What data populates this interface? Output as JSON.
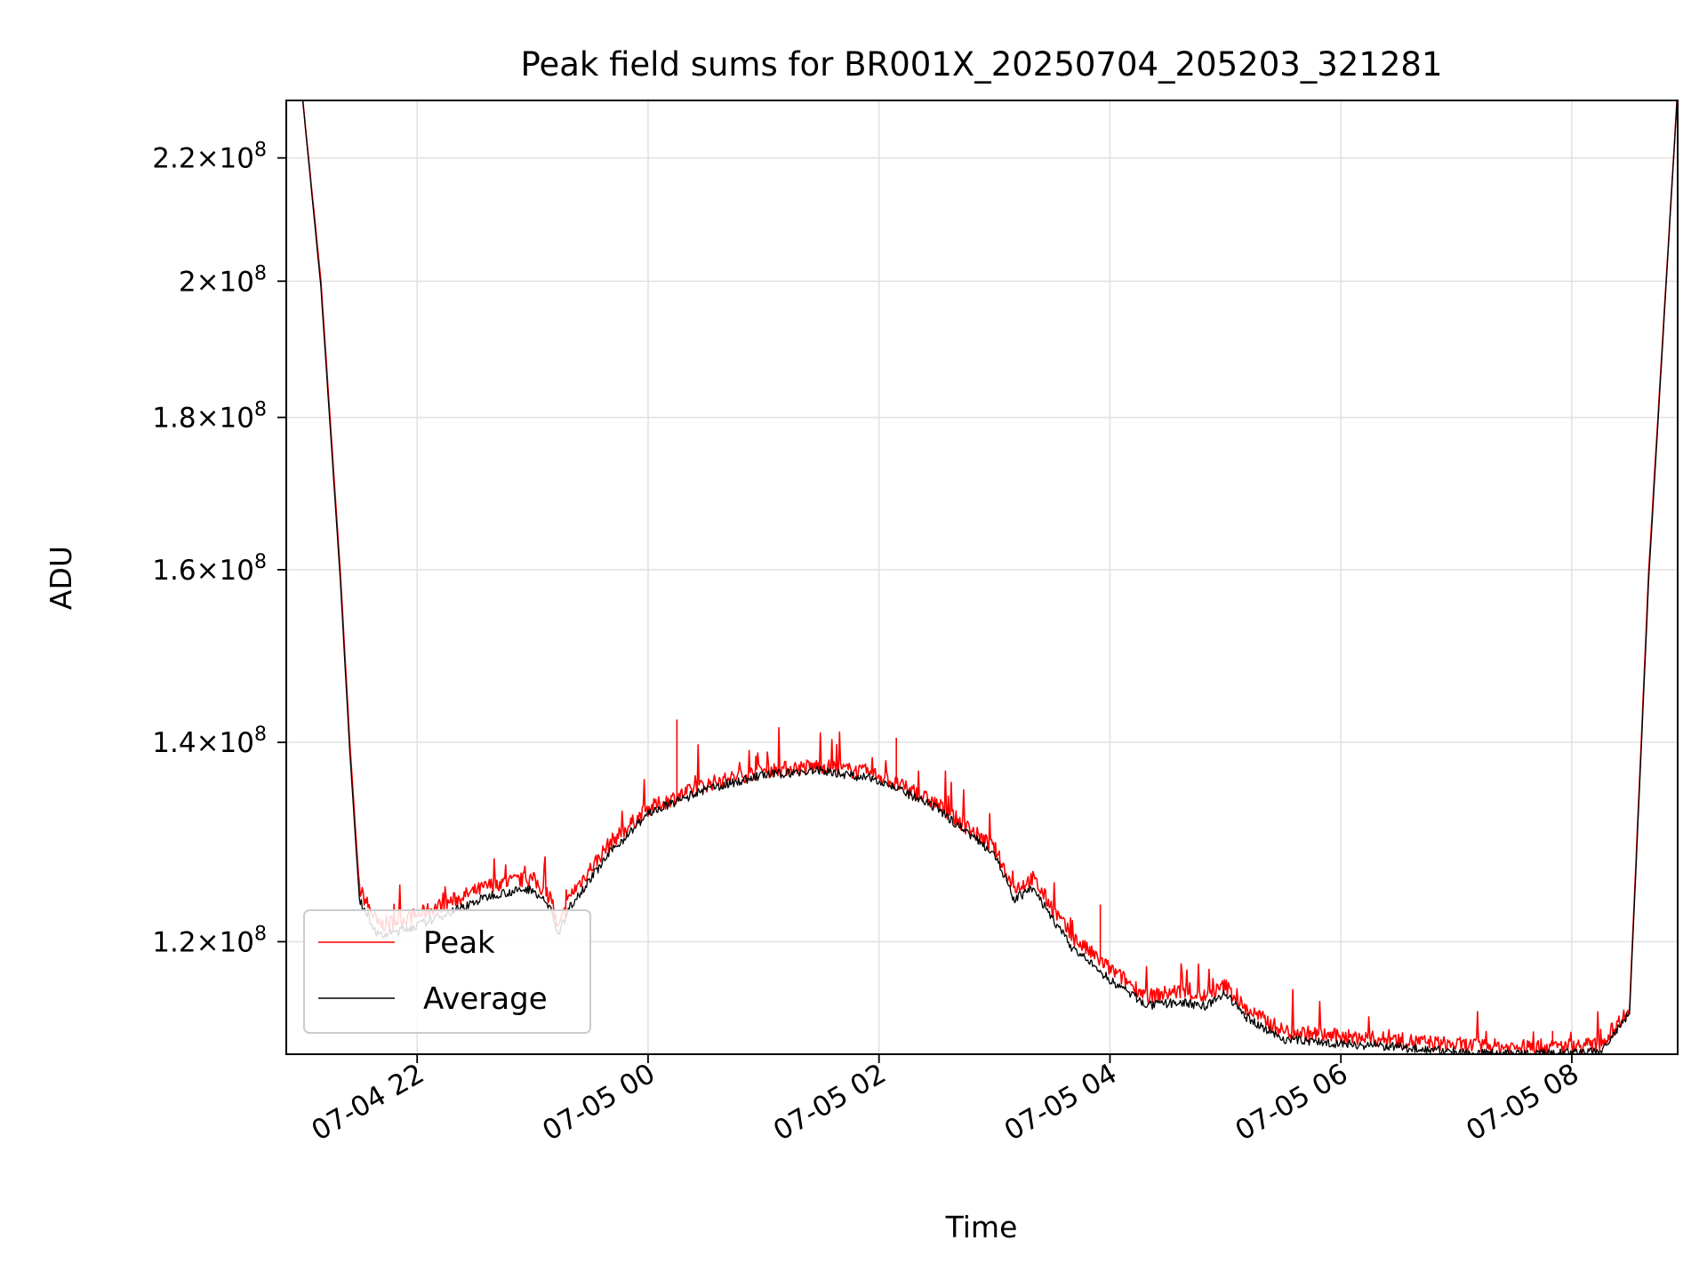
{
  "chart_data": {
    "type": "line",
    "title": "Peak field sums for BR001X_20250704_205203_321281",
    "xlabel": "Time",
    "ylabel": "ADU",
    "y_scale": "log",
    "grid": true,
    "legend_placement": "lower-left",
    "xlim": [
      "2025-07-04 20:52",
      "2025-07-05 08:55"
    ],
    "ylim": [
      110000000,
      230000000
    ],
    "x_ticks": [
      {
        "value": "2025-07-04 22:00",
        "label": "07-04 22"
      },
      {
        "value": "2025-07-05 00:00",
        "label": "07-05 00"
      },
      {
        "value": "2025-07-05 02:00",
        "label": "07-05 02"
      },
      {
        "value": "2025-07-05 04:00",
        "label": "07-05 04"
      },
      {
        "value": "2025-07-05 06:00",
        "label": "07-05 06"
      },
      {
        "value": "2025-07-05 08:00",
        "label": "07-05 08"
      }
    ],
    "y_ticks": [
      {
        "value": 120000000,
        "mantissa": "1.2",
        "exponent": "8"
      },
      {
        "value": 140000000,
        "mantissa": "1.4",
        "exponent": "8"
      },
      {
        "value": 160000000,
        "mantissa": "1.6",
        "exponent": "8"
      },
      {
        "value": 180000000,
        "mantissa": "1.8",
        "exponent": "8"
      },
      {
        "value": 200000000,
        "mantissa": "2",
        "exponent": "8"
      },
      {
        "value": 220000000,
        "mantissa": "2.2",
        "exponent": "8"
      }
    ],
    "x": [
      "2025-07-04 20:52",
      "2025-07-04 21:00",
      "2025-07-04 21:10",
      "2025-07-04 21:20",
      "2025-07-04 21:25",
      "2025-07-04 21:30",
      "2025-07-04 21:40",
      "2025-07-04 22:00",
      "2025-07-04 22:20",
      "2025-07-04 22:40",
      "2025-07-04 23:00",
      "2025-07-04 23:10",
      "2025-07-04 23:13",
      "2025-07-04 23:20",
      "2025-07-04 23:40",
      "2025-07-05 00:00",
      "2025-07-05 00:30",
      "2025-07-05 01:00",
      "2025-07-05 01:30",
      "2025-07-05 02:00",
      "2025-07-05 02:30",
      "2025-07-05 03:00",
      "2025-07-05 03:10",
      "2025-07-05 03:20",
      "2025-07-05 03:40",
      "2025-07-05 04:00",
      "2025-07-05 04:20",
      "2025-07-05 04:35",
      "2025-07-05 04:50",
      "2025-07-05 05:00",
      "2025-07-05 05:10",
      "2025-07-05 05:30",
      "2025-07-05 06:00",
      "2025-07-05 06:30",
      "2025-07-05 07:00",
      "2025-07-05 07:30",
      "2025-07-05 08:00",
      "2025-07-05 08:15",
      "2025-07-05 08:30",
      "2025-07-05 08:40",
      "2025-07-05 08:55"
    ],
    "series": [
      {
        "name": "Peak",
        "color": "#ff0000",
        "values": [
          232000000,
          232000000,
          200000000,
          160000000,
          140000000,
          125000000,
          121500000,
          122500000,
          124000000,
          125500000,
          126000000,
          124000000,
          121000000,
          124500000,
          129500000,
          133000000,
          135500000,
          137000000,
          137500000,
          136500000,
          133500000,
          129000000,
          125000000,
          126000000,
          120500000,
          117500000,
          115000000,
          115500000,
          115000000,
          116000000,
          114000000,
          112000000,
          111500000,
          111200000,
          110800000,
          110600000,
          110700000,
          110800000,
          114000000,
          160000000,
          232000000
        ]
      },
      {
        "name": "Average",
        "color": "#000000",
        "values": [
          232000000,
          232000000,
          199000000,
          159000000,
          139000000,
          124000000,
          120500000,
          121500000,
          123000000,
          124500000,
          125000000,
          123000000,
          120500000,
          123500000,
          128500000,
          132500000,
          135000000,
          136500000,
          137000000,
          136000000,
          133000000,
          128500000,
          124000000,
          125000000,
          119500000,
          116500000,
          114200000,
          114500000,
          114200000,
          115300000,
          113300000,
          111300000,
          110900000,
          110600000,
          110200000,
          110000000,
          110100000,
          110200000,
          113500000,
          159000000,
          232000000
        ]
      }
    ],
    "spikes": [
      {
        "x": "2025-07-05 00:15",
        "y": 142500000
      },
      {
        "x": "2025-07-05 02:09",
        "y": 140500000
      },
      {
        "x": "2025-07-05 03:55",
        "y": 123500000
      },
      {
        "x": "2025-07-05 07:50",
        "y": 112000000
      }
    ]
  }
}
